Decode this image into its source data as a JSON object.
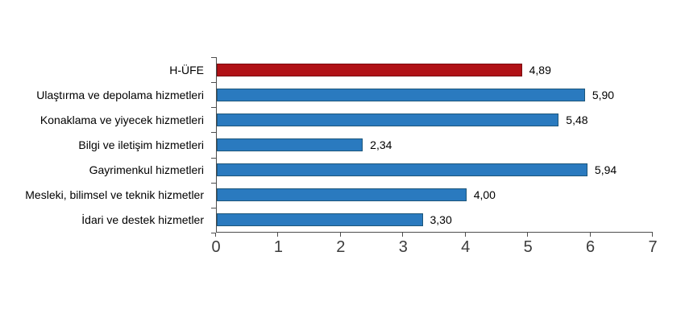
{
  "chart_data": {
    "type": "bar",
    "orientation": "horizontal",
    "title": "",
    "xlabel": "",
    "ylabel": "",
    "grid": false,
    "legend": null,
    "xlim": [
      0,
      7
    ],
    "x_ticks": [
      "0",
      "1",
      "2",
      "3",
      "4",
      "5",
      "6",
      "7"
    ],
    "categories": [
      "H-ÜFE",
      "Ulaştırma ve depolama hizmetleri",
      "Konaklama ve yiyecek hizmetleri",
      "Bilgi ve iletişim hizmetleri",
      "Gayrimenkul hizmetleri",
      "Mesleki, bilimsel ve teknik hizmetler",
      "İdari ve destek hizmetler"
    ],
    "values": [
      4.89,
      5.9,
      5.48,
      2.34,
      5.94,
      4.0,
      3.3
    ],
    "value_labels": [
      "4,89",
      "5,90",
      "5,48",
      "2,34",
      "5,94",
      "4,00",
      "3,30"
    ],
    "bar_fill_colors": [
      "#b01116",
      "#2a7abf",
      "#2a7abf",
      "#2a7abf",
      "#2a7abf",
      "#2a7abf",
      "#2a7abf"
    ],
    "bar_border_colors": [
      "#7a0c10",
      "#1d567a",
      "#1d567a",
      "#1d567a",
      "#1d567a",
      "#1d567a",
      "#1d567a"
    ]
  },
  "colors": {
    "background": "#ffffff",
    "highlight_bar": "#b01116",
    "default_bar": "#2a7abf",
    "axis": "#4d4d4d",
    "tick_text": "#3c3c3c",
    "label_text": "#000000"
  }
}
